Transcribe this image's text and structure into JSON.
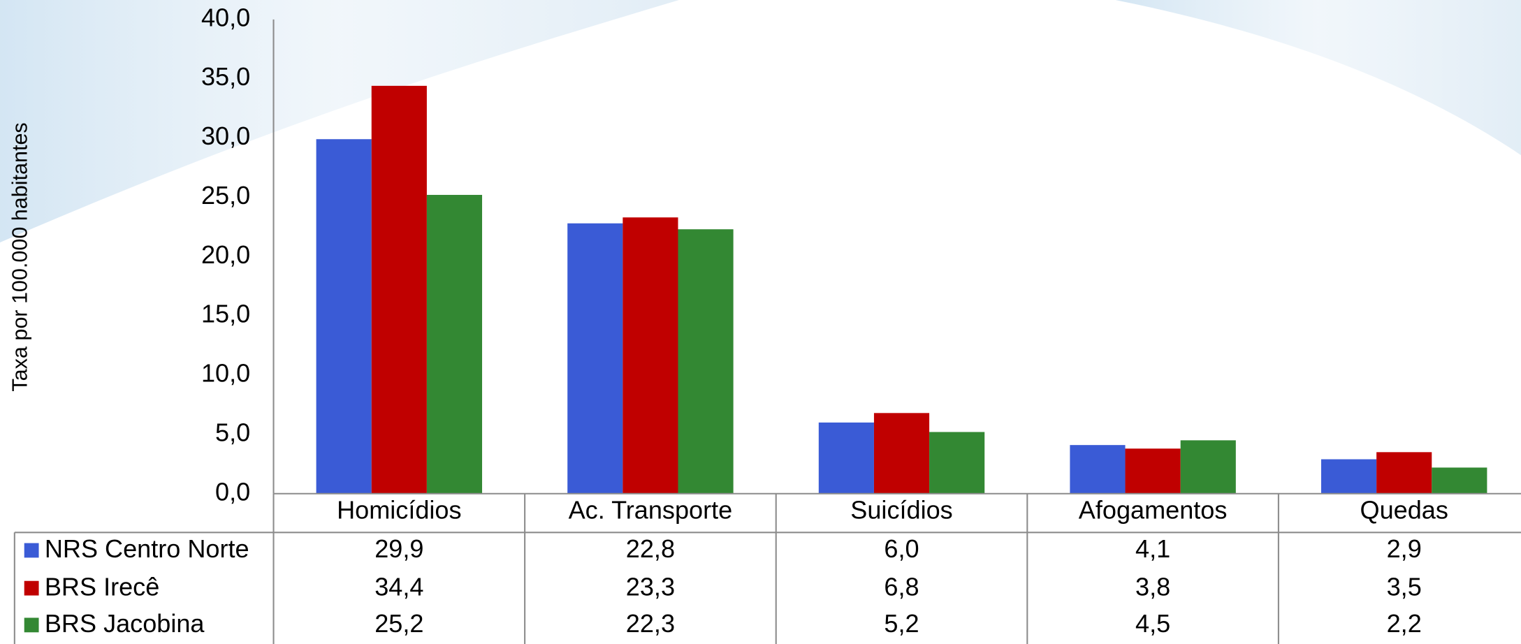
{
  "chart_data": {
    "type": "bar",
    "y_axis_label": "Taxa por 100.000 habitantes",
    "categories": [
      "Homicídios",
      "Ac. Transporte",
      "Suicídios",
      "Afogamentos",
      "Quedas"
    ],
    "series": [
      {
        "name": "NRS Centro Norte",
        "color": "#3a5bd6",
        "values": [
          29.9,
          22.8,
          6.0,
          4.1,
          2.9
        ],
        "value_labels": [
          "29,9",
          "22,8",
          "6,0",
          "4,1",
          "2,9"
        ]
      },
      {
        "name": "BRS Irecê",
        "color": "#c00000",
        "values": [
          34.4,
          23.3,
          6.8,
          3.8,
          3.5
        ],
        "value_labels": [
          "34,4",
          "23,3",
          "6,8",
          "3,8",
          "3,5"
        ]
      },
      {
        "name": "BRS Jacobina",
        "color": "#338833",
        "values": [
          25.2,
          22.3,
          5.2,
          4.5,
          2.2
        ],
        "value_labels": [
          "25,2",
          "22,3",
          "5,2",
          "4,5",
          "2,2"
        ]
      }
    ],
    "ylim": [
      0,
      40
    ],
    "yticks": [
      {
        "value": 0,
        "label": "0,0"
      },
      {
        "value": 5,
        "label": "5,0"
      },
      {
        "value": 10,
        "label": "10,0"
      },
      {
        "value": 15,
        "label": "15,0"
      },
      {
        "value": 20,
        "label": "20,0"
      },
      {
        "value": 25,
        "label": "25,0"
      },
      {
        "value": 30,
        "label": "30,0"
      },
      {
        "value": 35,
        "label": "35,0"
      },
      {
        "value": 40,
        "label": "40,0"
      }
    ],
    "data_table": true
  }
}
